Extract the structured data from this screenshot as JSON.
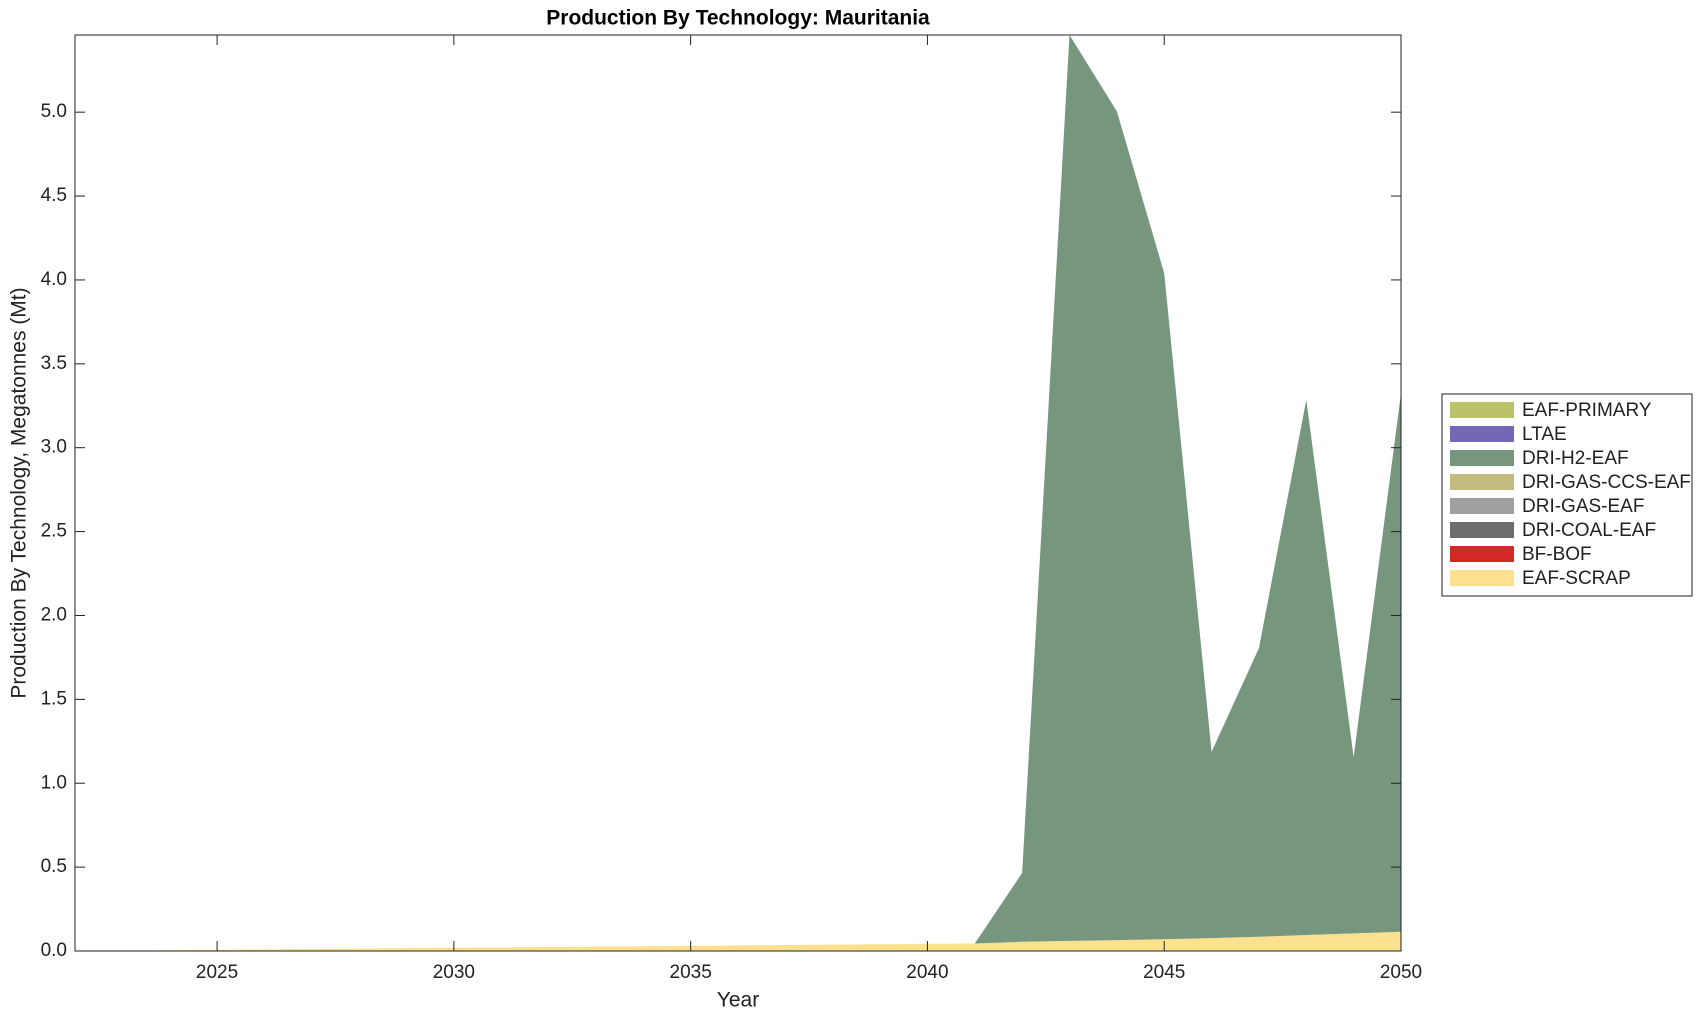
{
  "chart_data": {
    "type": "stacked_area",
    "title": "Production By Technology: Mauritania",
    "x_label": "Year",
    "y_label": "Production By Technology, Megatonnes (Mt)",
    "x": [
      2022,
      2023,
      2024,
      2025,
      2026,
      2027,
      2028,
      2029,
      2030,
      2031,
      2032,
      2033,
      2034,
      2035,
      2036,
      2037,
      2038,
      2039,
      2040,
      2041,
      2042,
      2043,
      2044,
      2045,
      2046,
      2047,
      2048,
      2049,
      2050
    ],
    "xlim": [
      2022,
      2050
    ],
    "xticks": [
      2025,
      2030,
      2035,
      2040,
      2045,
      2050
    ],
    "ylim": [
      0,
      5.46
    ],
    "yticks": [
      {
        "value": 0,
        "label": "0.0"
      },
      0.5,
      {
        "value": 1,
        "label": "1.0"
      },
      1.5,
      {
        "value": 2,
        "label": "2.0"
      },
      2.5,
      {
        "value": 3,
        "label": "3.0"
      },
      3.5,
      {
        "value": 4,
        "label": "4.0"
      },
      4.5,
      {
        "value": 5,
        "label": "5.0"
      }
    ],
    "legend_position": "right",
    "series": [
      {
        "name": "EAF-SCRAP",
        "color": "#fde18e",
        "values": [
          0,
          0.002,
          0.005,
          0.007,
          0.01,
          0.012,
          0.014,
          0.017,
          0.019,
          0.021,
          0.024,
          0.026,
          0.028,
          0.031,
          0.033,
          0.036,
          0.038,
          0.04,
          0.043,
          0.045,
          0.055,
          0.06,
          0.065,
          0.07,
          0.077,
          0.085,
          0.095,
          0.105,
          0.115
        ]
      },
      {
        "name": "BF-BOF",
        "color": "#d42a27",
        "values": [
          0,
          0,
          0,
          0,
          0,
          0,
          0,
          0,
          0,
          0,
          0,
          0,
          0,
          0,
          0,
          0,
          0,
          0,
          0,
          0,
          0,
          0,
          0,
          0,
          0,
          0,
          0,
          0,
          0
        ]
      },
      {
        "name": "DRI-COAL-EAF",
        "color": "#6c6c6c",
        "values": [
          0,
          0,
          0,
          0,
          0,
          0,
          0,
          0,
          0,
          0,
          0,
          0,
          0,
          0,
          0,
          0,
          0,
          0,
          0,
          0,
          0,
          0,
          0,
          0,
          0,
          0,
          0,
          0,
          0
        ]
      },
      {
        "name": "DRI-GAS-EAF",
        "color": "#a0a0a0",
        "values": [
          0,
          0,
          0,
          0,
          0,
          0,
          0,
          0,
          0,
          0,
          0,
          0,
          0,
          0,
          0,
          0,
          0,
          0,
          0,
          0,
          0,
          0,
          0,
          0,
          0,
          0,
          0,
          0,
          0
        ]
      },
      {
        "name": "DRI-GAS-CCS-EAF",
        "color": "#c4bb7e",
        "values": [
          0,
          0,
          0,
          0,
          0,
          0,
          0,
          0,
          0,
          0,
          0,
          0,
          0,
          0,
          0,
          0,
          0,
          0,
          0,
          0,
          0,
          0,
          0,
          0,
          0,
          0,
          0,
          0,
          0
        ]
      },
      {
        "name": "DRI-H2-EAF",
        "color": "#76977d",
        "values": [
          0,
          0,
          0,
          0,
          0,
          0,
          0,
          0,
          0,
          0,
          0,
          0,
          0,
          0,
          0,
          0,
          0,
          0,
          0,
          0,
          0.41,
          5.4,
          4.94,
          3.97,
          1.11,
          1.72,
          3.19,
          1.05,
          3.21
        ]
      },
      {
        "name": "LTAE",
        "color": "#7467b6",
        "values": [
          0,
          0,
          0,
          0,
          0,
          0,
          0,
          0,
          0,
          0,
          0,
          0,
          0,
          0,
          0,
          0,
          0,
          0,
          0,
          0,
          0,
          0,
          0,
          0,
          0,
          0,
          0,
          0,
          0
        ]
      },
      {
        "name": "EAF-PRIMARY",
        "color": "#bcc26a",
        "values": [
          0,
          0,
          0,
          0,
          0,
          0,
          0,
          0,
          0,
          0,
          0,
          0,
          0,
          0,
          0,
          0,
          0,
          0,
          0,
          0,
          0,
          0,
          0,
          0,
          0,
          0,
          0,
          0,
          0
        ]
      }
    ]
  }
}
